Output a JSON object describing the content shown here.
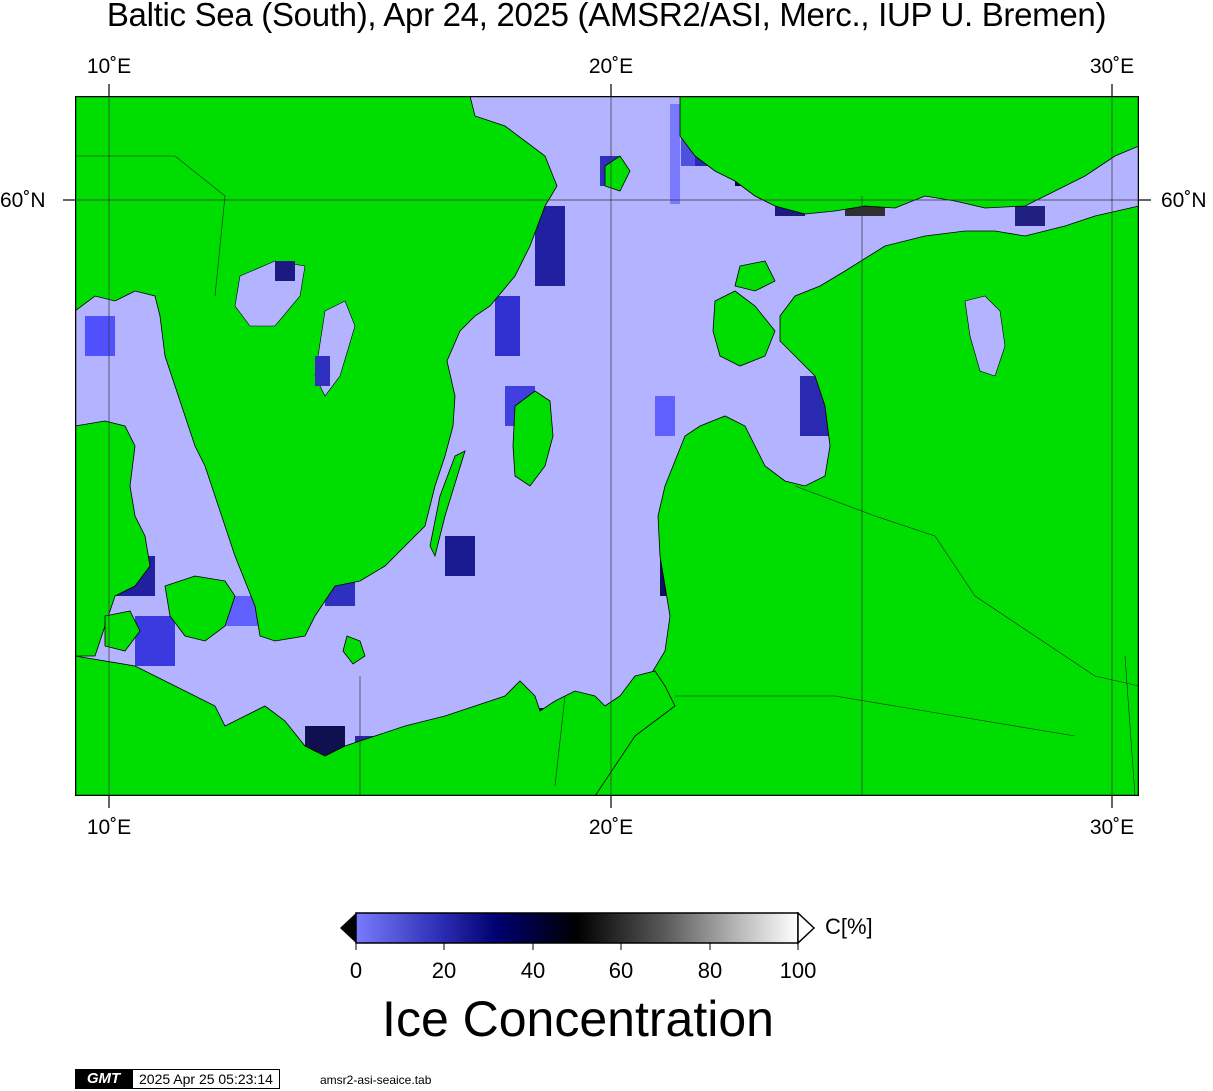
{
  "title": "Baltic Sea (South), Apr 24, 2025 (AMSR2/ASI, Merc., IUP U. Bremen)",
  "axes": {
    "top_ticks": [
      "10˚E",
      "20˚E",
      "30˚E"
    ],
    "bottom_ticks": [
      "10˚E",
      "20˚E",
      "30˚E"
    ],
    "lat_left": "60˚N",
    "lat_right": "60˚N"
  },
  "colors": {
    "land": "#00dd00",
    "open_ice_low": "#b3b3ff",
    "ice_mid": "#00007f",
    "ice_high": "#000000",
    "ice_full": "#ffffff",
    "gridline": "#333333"
  },
  "colorbar": {
    "labels": [
      "0",
      "20",
      "40",
      "60",
      "80",
      "100"
    ],
    "unit": "C[%]",
    "title": "Ice Concentration"
  },
  "footer": {
    "logo": "GMT",
    "timestamp": "2025 Apr 25 05:23:14",
    "script": "amsr2-asi-seaice.tab"
  }
}
